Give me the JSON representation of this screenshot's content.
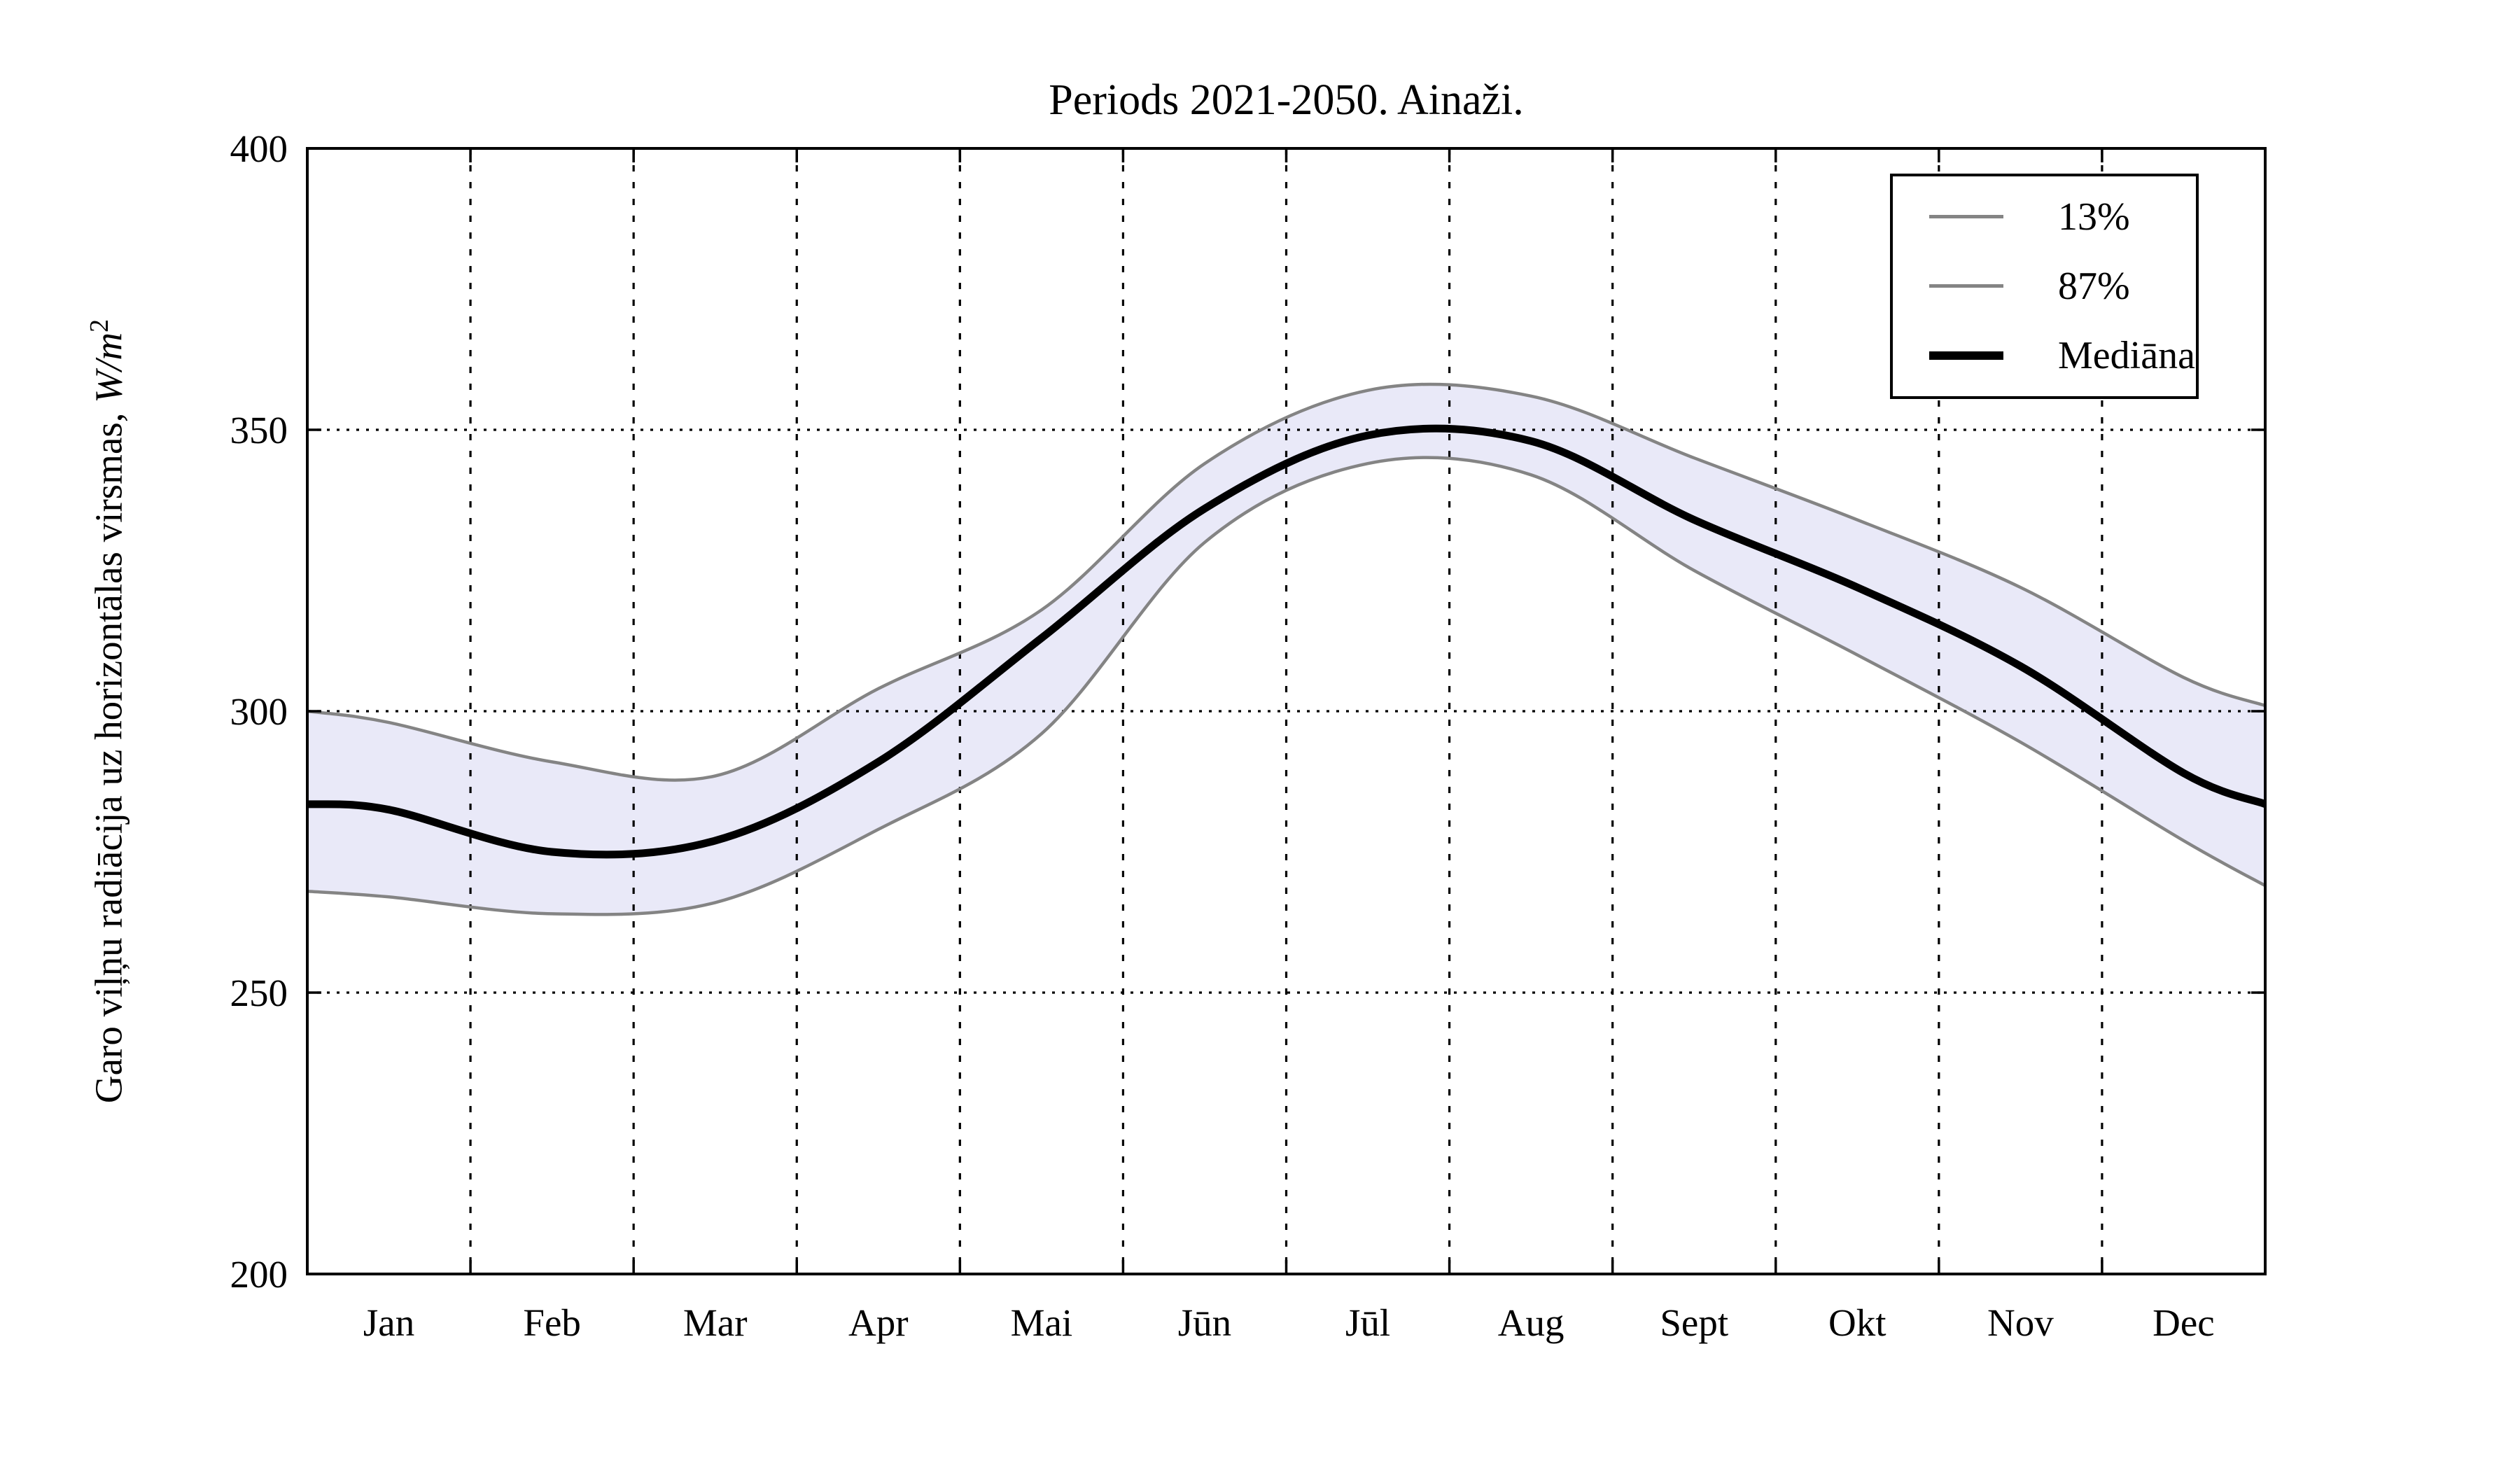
{
  "chart": {
    "title": "Periods 2021-2050. Ainaži.",
    "y_axis": {
      "label_prefix": "Garo viļņu radiācija uz horizontālas virsmas, ",
      "label_math": "W/m",
      "label_exponent": "2"
    },
    "legend": [
      {
        "label": "13%",
        "swatch": "thin-gray-line"
      },
      {
        "label": "87%",
        "swatch": "thin-gray-line"
      },
      {
        "label": "Mediāna",
        "swatch": "thick-black-line"
      }
    ],
    "colors": {
      "background": "#ffffff",
      "band_fill": "#E9E9F8",
      "percentile_line": "#848484",
      "median_line": "#000000",
      "grid": "#000000",
      "frame": "#000000",
      "text": "#000000"
    }
  },
  "chart_data": {
    "type": "line",
    "title": "Periods 2021-2050. Ainaži.",
    "xlabel": "",
    "ylabel": "Garo viļņu radiācija uz horizontālas virsmas, W/m2",
    "categories": [
      "Jan",
      "Feb",
      "Mar",
      "Apr",
      "Mai",
      "Jūn",
      "Jūl",
      "Aug",
      "Sept",
      "Okt",
      "Nov",
      "Dec"
    ],
    "x_months": [
      0,
      0.5,
      1.5,
      2.5,
      3.5,
      4.5,
      5.5,
      6.5,
      7.5,
      8.5,
      9.5,
      10.5,
      11.5,
      12
    ],
    "x_note": "values given at plot left edge, each month center, and plot right edge",
    "series": [
      {
        "name": "13%",
        "role": "lower-percentile",
        "values": [
          268,
          267,
          264,
          266,
          279,
          296,
          330,
          344,
          342,
          325,
          310,
          294.5,
          277,
          269
        ]
      },
      {
        "name": "87%",
        "role": "upper-percentile",
        "values": [
          300,
          298,
          291,
          288.5,
          304,
          318,
          344,
          357,
          356,
          345,
          334,
          322,
          306,
          301
        ]
      },
      {
        "name": "Mediāna",
        "role": "median",
        "values": [
          283.5,
          282.5,
          275,
          277,
          291,
          313,
          336,
          349,
          348,
          334,
          322,
          308,
          289,
          283.5
        ]
      }
    ],
    "band": {
      "between": [
        "13%",
        "87%"
      ],
      "fill": "#E9E9F8"
    },
    "y_ticks": [
      200,
      250,
      300,
      350,
      400
    ],
    "ylim": [
      200,
      400
    ],
    "xlim_months": [
      0,
      12
    ],
    "grid": "dotted",
    "legend_position": "upper right"
  }
}
